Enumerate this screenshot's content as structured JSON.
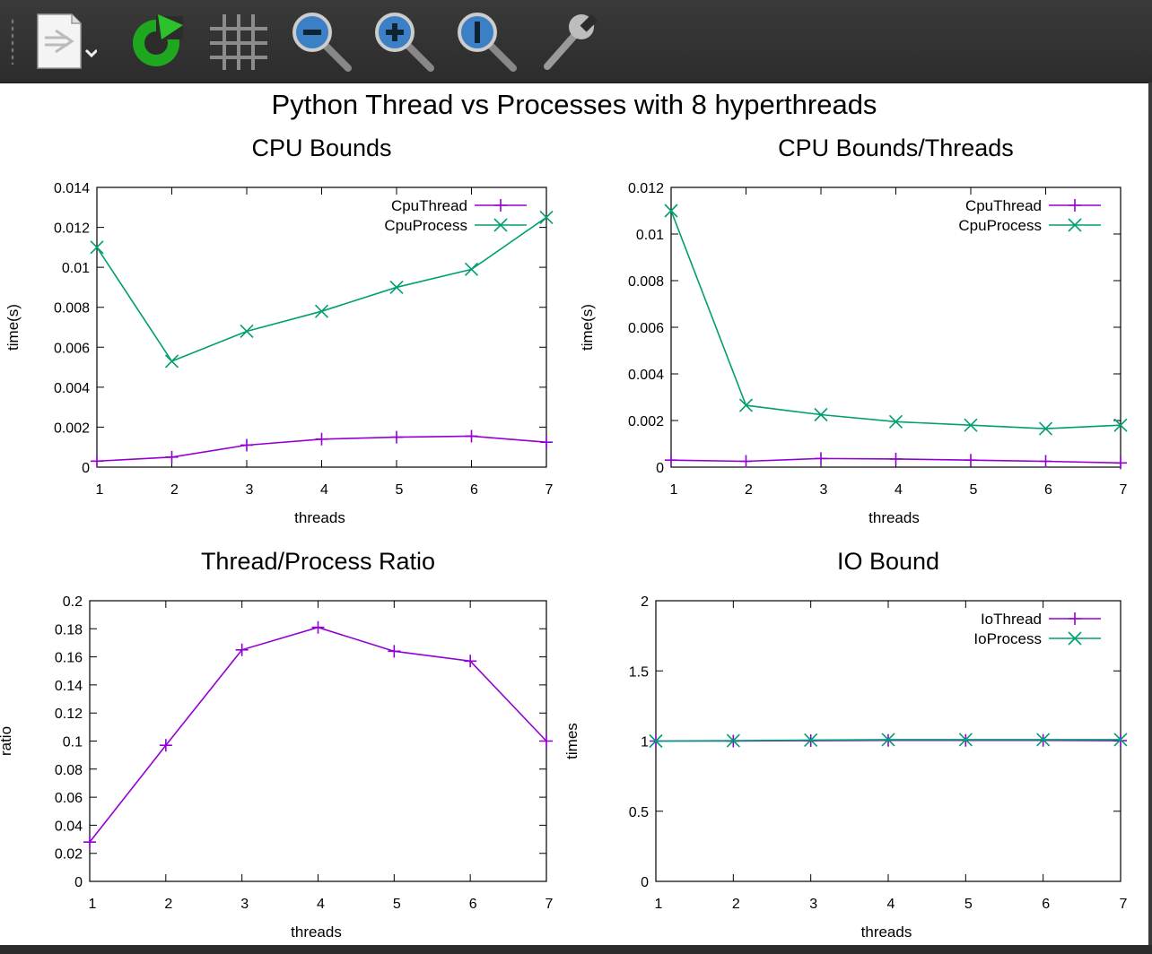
{
  "toolbar": {
    "buttons": [
      {
        "name": "export-icon"
      },
      {
        "name": "refresh-icon"
      },
      {
        "name": "grid-icon"
      },
      {
        "name": "zoom-out-icon"
      },
      {
        "name": "zoom-in-icon"
      },
      {
        "name": "zoom-reset-icon"
      },
      {
        "name": "settings-wrench-icon"
      }
    ]
  },
  "figure_title": "Python Thread vs Processes with 8 hyperthreads",
  "colors": {
    "thread": "#9400d3",
    "process": "#009e73"
  },
  "chart_data": [
    {
      "type": "line",
      "title": "CPU Bounds",
      "xlabel": "threads",
      "ylabel": "time(s)",
      "xlim": [
        1,
        7
      ],
      "ylim": [
        0,
        0.014
      ],
      "xticks": [
        "1",
        "2",
        "3",
        "4",
        "5",
        "6",
        "7"
      ],
      "yticks": [
        "0",
        "0.002",
        "0.004",
        "0.006",
        "0.008",
        "0.01",
        "0.012",
        "0.014"
      ],
      "legend": "top-right",
      "x": [
        1,
        2,
        3,
        4,
        5,
        6,
        7
      ],
      "series": [
        {
          "name": "CpuThread",
          "marker": "plus",
          "values": [
            0.0003,
            0.0005,
            0.0011,
            0.0014,
            0.0015,
            0.00155,
            0.00125
          ]
        },
        {
          "name": "CpuProcess",
          "marker": "cross",
          "values": [
            0.011,
            0.0053,
            0.0068,
            0.0078,
            0.009,
            0.0099,
            0.0125
          ]
        }
      ]
    },
    {
      "type": "line",
      "title": "CPU Bounds/Threads",
      "xlabel": "threads",
      "ylabel": "time(s)",
      "xlim": [
        1,
        7
      ],
      "ylim": [
        0,
        0.012
      ],
      "xticks": [
        "1",
        "2",
        "3",
        "4",
        "5",
        "6",
        "7"
      ],
      "yticks": [
        "0",
        "0.002",
        "0.004",
        "0.006",
        "0.008",
        "0.01",
        "0.012"
      ],
      "legend": "top-right",
      "x": [
        1,
        2,
        3,
        4,
        5,
        6,
        7
      ],
      "series": [
        {
          "name": "CpuThread",
          "marker": "plus",
          "values": [
            0.0003,
            0.00025,
            0.00037,
            0.00035,
            0.0003,
            0.00025,
            0.00018
          ]
        },
        {
          "name": "CpuProcess",
          "marker": "cross",
          "values": [
            0.011,
            0.00265,
            0.00225,
            0.00195,
            0.0018,
            0.00165,
            0.0018
          ]
        }
      ]
    },
    {
      "type": "line",
      "title": "Thread/Process Ratio",
      "xlabel": "threads",
      "ylabel": "ratio",
      "xlim": [
        1,
        7
      ],
      "ylim": [
        0,
        0.2
      ],
      "xticks": [
        "1",
        "2",
        "3",
        "4",
        "5",
        "6",
        "7"
      ],
      "yticks": [
        "0",
        "0.02",
        "0.04",
        "0.06",
        "0.08",
        "0.1",
        "0.12",
        "0.14",
        "0.16",
        "0.18",
        "0.2"
      ],
      "legend": "none",
      "x": [
        1,
        2,
        3,
        4,
        5,
        6,
        7
      ],
      "series": [
        {
          "name": "",
          "marker": "plus",
          "values": [
            0.028,
            0.097,
            0.165,
            0.181,
            0.164,
            0.157,
            0.1
          ]
        }
      ]
    },
    {
      "type": "line",
      "title": "IO Bound",
      "xlabel": "threads",
      "ylabel": "times",
      "xlim": [
        1,
        7
      ],
      "ylim": [
        0,
        2
      ],
      "xticks": [
        "1",
        "2",
        "3",
        "4",
        "5",
        "6",
        "7"
      ],
      "yticks": [
        "0",
        "0.5",
        "1",
        "1.5",
        "2"
      ],
      "legend": "top-right",
      "x": [
        1,
        2,
        3,
        4,
        5,
        6,
        7
      ],
      "series": [
        {
          "name": "IoThread",
          "marker": "plus",
          "values": [
            1.0,
            1.0,
            1.003,
            1.005,
            1.005,
            1.005,
            1.003
          ]
        },
        {
          "name": "IoProcess",
          "marker": "cross",
          "values": [
            1.0,
            1.003,
            1.007,
            1.01,
            1.01,
            1.01,
            1.01
          ]
        }
      ]
    }
  ]
}
